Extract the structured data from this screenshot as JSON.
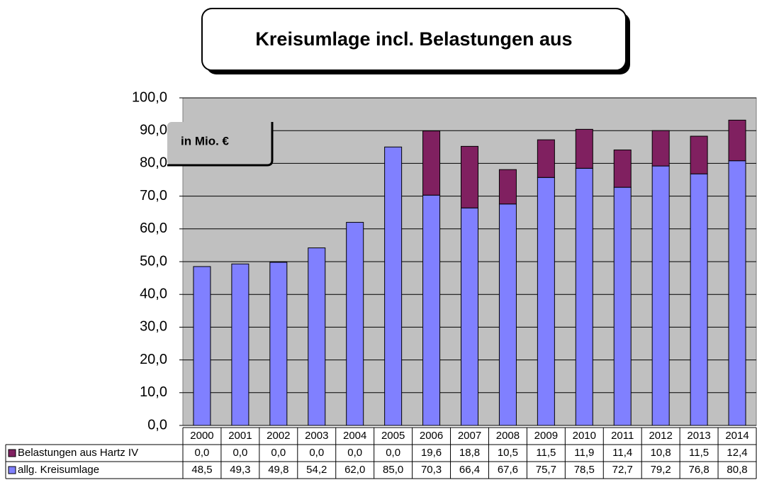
{
  "chart_data": {
    "type": "stacked_bar",
    "title": "Kreisumlage incl. Belastungen aus",
    "annotation": "in Mio. €",
    "categories": [
      "2000",
      "2001",
      "2002",
      "2003",
      "2004",
      "2005",
      "2006",
      "2007",
      "2008",
      "2009",
      "2010",
      "2011",
      "2012",
      "2013",
      "2014"
    ],
    "series": [
      {
        "name": "allg. Kreisumlage",
        "color": "#8080ff",
        "values": [
          48.5,
          49.3,
          49.8,
          54.2,
          62.0,
          85.0,
          70.3,
          66.4,
          67.6,
          75.7,
          78.5,
          72.7,
          79.2,
          76.8,
          80.8
        ],
        "value_labels": [
          "48,5",
          "49,3",
          "49,8",
          "54,2",
          "62,0",
          "85,0",
          "70,3",
          "66,4",
          "67,6",
          "75,7",
          "78,5",
          "72,7",
          "79,2",
          "76,8",
          "80,8"
        ]
      },
      {
        "name": "Belastungen aus Hartz IV",
        "color": "#802060",
        "values": [
          0.0,
          0.0,
          0.0,
          0.0,
          0.0,
          0.0,
          19.6,
          18.8,
          10.5,
          11.5,
          11.9,
          11.4,
          10.8,
          11.5,
          12.4
        ],
        "value_labels": [
          "0,0",
          "0,0",
          "0,0",
          "0,0",
          "0,0",
          "0,0",
          "19,6",
          "18,8",
          "10,5",
          "11,5",
          "11,9",
          "11,4",
          "10,8",
          "11,5",
          "12,4"
        ]
      }
    ],
    "ylim": [
      0,
      100
    ],
    "yticks": [
      {
        "value": 0,
        "label": "0,0"
      },
      {
        "value": 10,
        "label": "10,0"
      },
      {
        "value": 20,
        "label": "20,0"
      },
      {
        "value": 30,
        "label": "30,0"
      },
      {
        "value": 40,
        "label": "40,0"
      },
      {
        "value": 50,
        "label": "50,0"
      },
      {
        "value": 60,
        "label": "60,0"
      },
      {
        "value": 70,
        "label": "70,0"
      },
      {
        "value": 80,
        "label": "80,0"
      },
      {
        "value": 90,
        "label": "90,0"
      },
      {
        "value": 100,
        "label": "100,0"
      }
    ],
    "grid": true,
    "plot_background": "#c0c0c0"
  }
}
